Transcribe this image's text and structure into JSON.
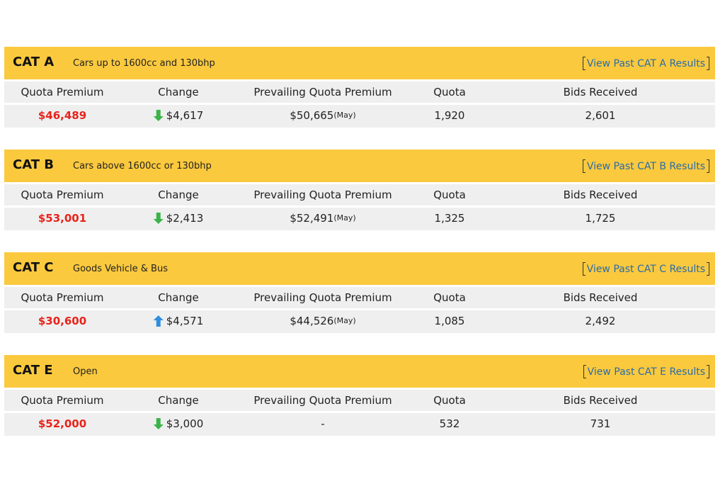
{
  "columns": [
    "Quota Premium",
    "Change",
    "Prevailing Quota Premium",
    "Quota",
    "Bids Received"
  ],
  "sections": [
    {
      "name": "CAT A",
      "description": "Cars up to 1600cc and 130bhp",
      "link": "View Past CAT A Results",
      "quota_premium": "$46,489",
      "change_direction": "down",
      "change": "$4,617",
      "prevailing": "$50,665",
      "prevailing_month": "(May)",
      "quota": "1,920",
      "bids_received": "2,601"
    },
    {
      "name": "CAT B",
      "description": "Cars above 1600cc or 130bhp",
      "link": "View Past CAT B Results",
      "quota_premium": "$53,001",
      "change_direction": "down",
      "change": "$2,413",
      "prevailing": "$52,491",
      "prevailing_month": "(May)",
      "quota": "1,325",
      "bids_received": "1,725"
    },
    {
      "name": "CAT C",
      "description": "Goods Vehicle & Bus",
      "link": "View Past CAT C Results",
      "quota_premium": "$30,600",
      "change_direction": "up",
      "change": "$4,571",
      "prevailing": "$44,526",
      "prevailing_month": "(May)",
      "quota": "1,085",
      "bids_received": "2,492"
    },
    {
      "name": "CAT E",
      "description": "Open",
      "link": "View Past CAT E Results",
      "quota_premium": "$52,000",
      "change_direction": "down",
      "change": "$3,000",
      "prevailing": "-",
      "prevailing_month": null,
      "quota": "532",
      "bids_received": "731"
    }
  ]
}
